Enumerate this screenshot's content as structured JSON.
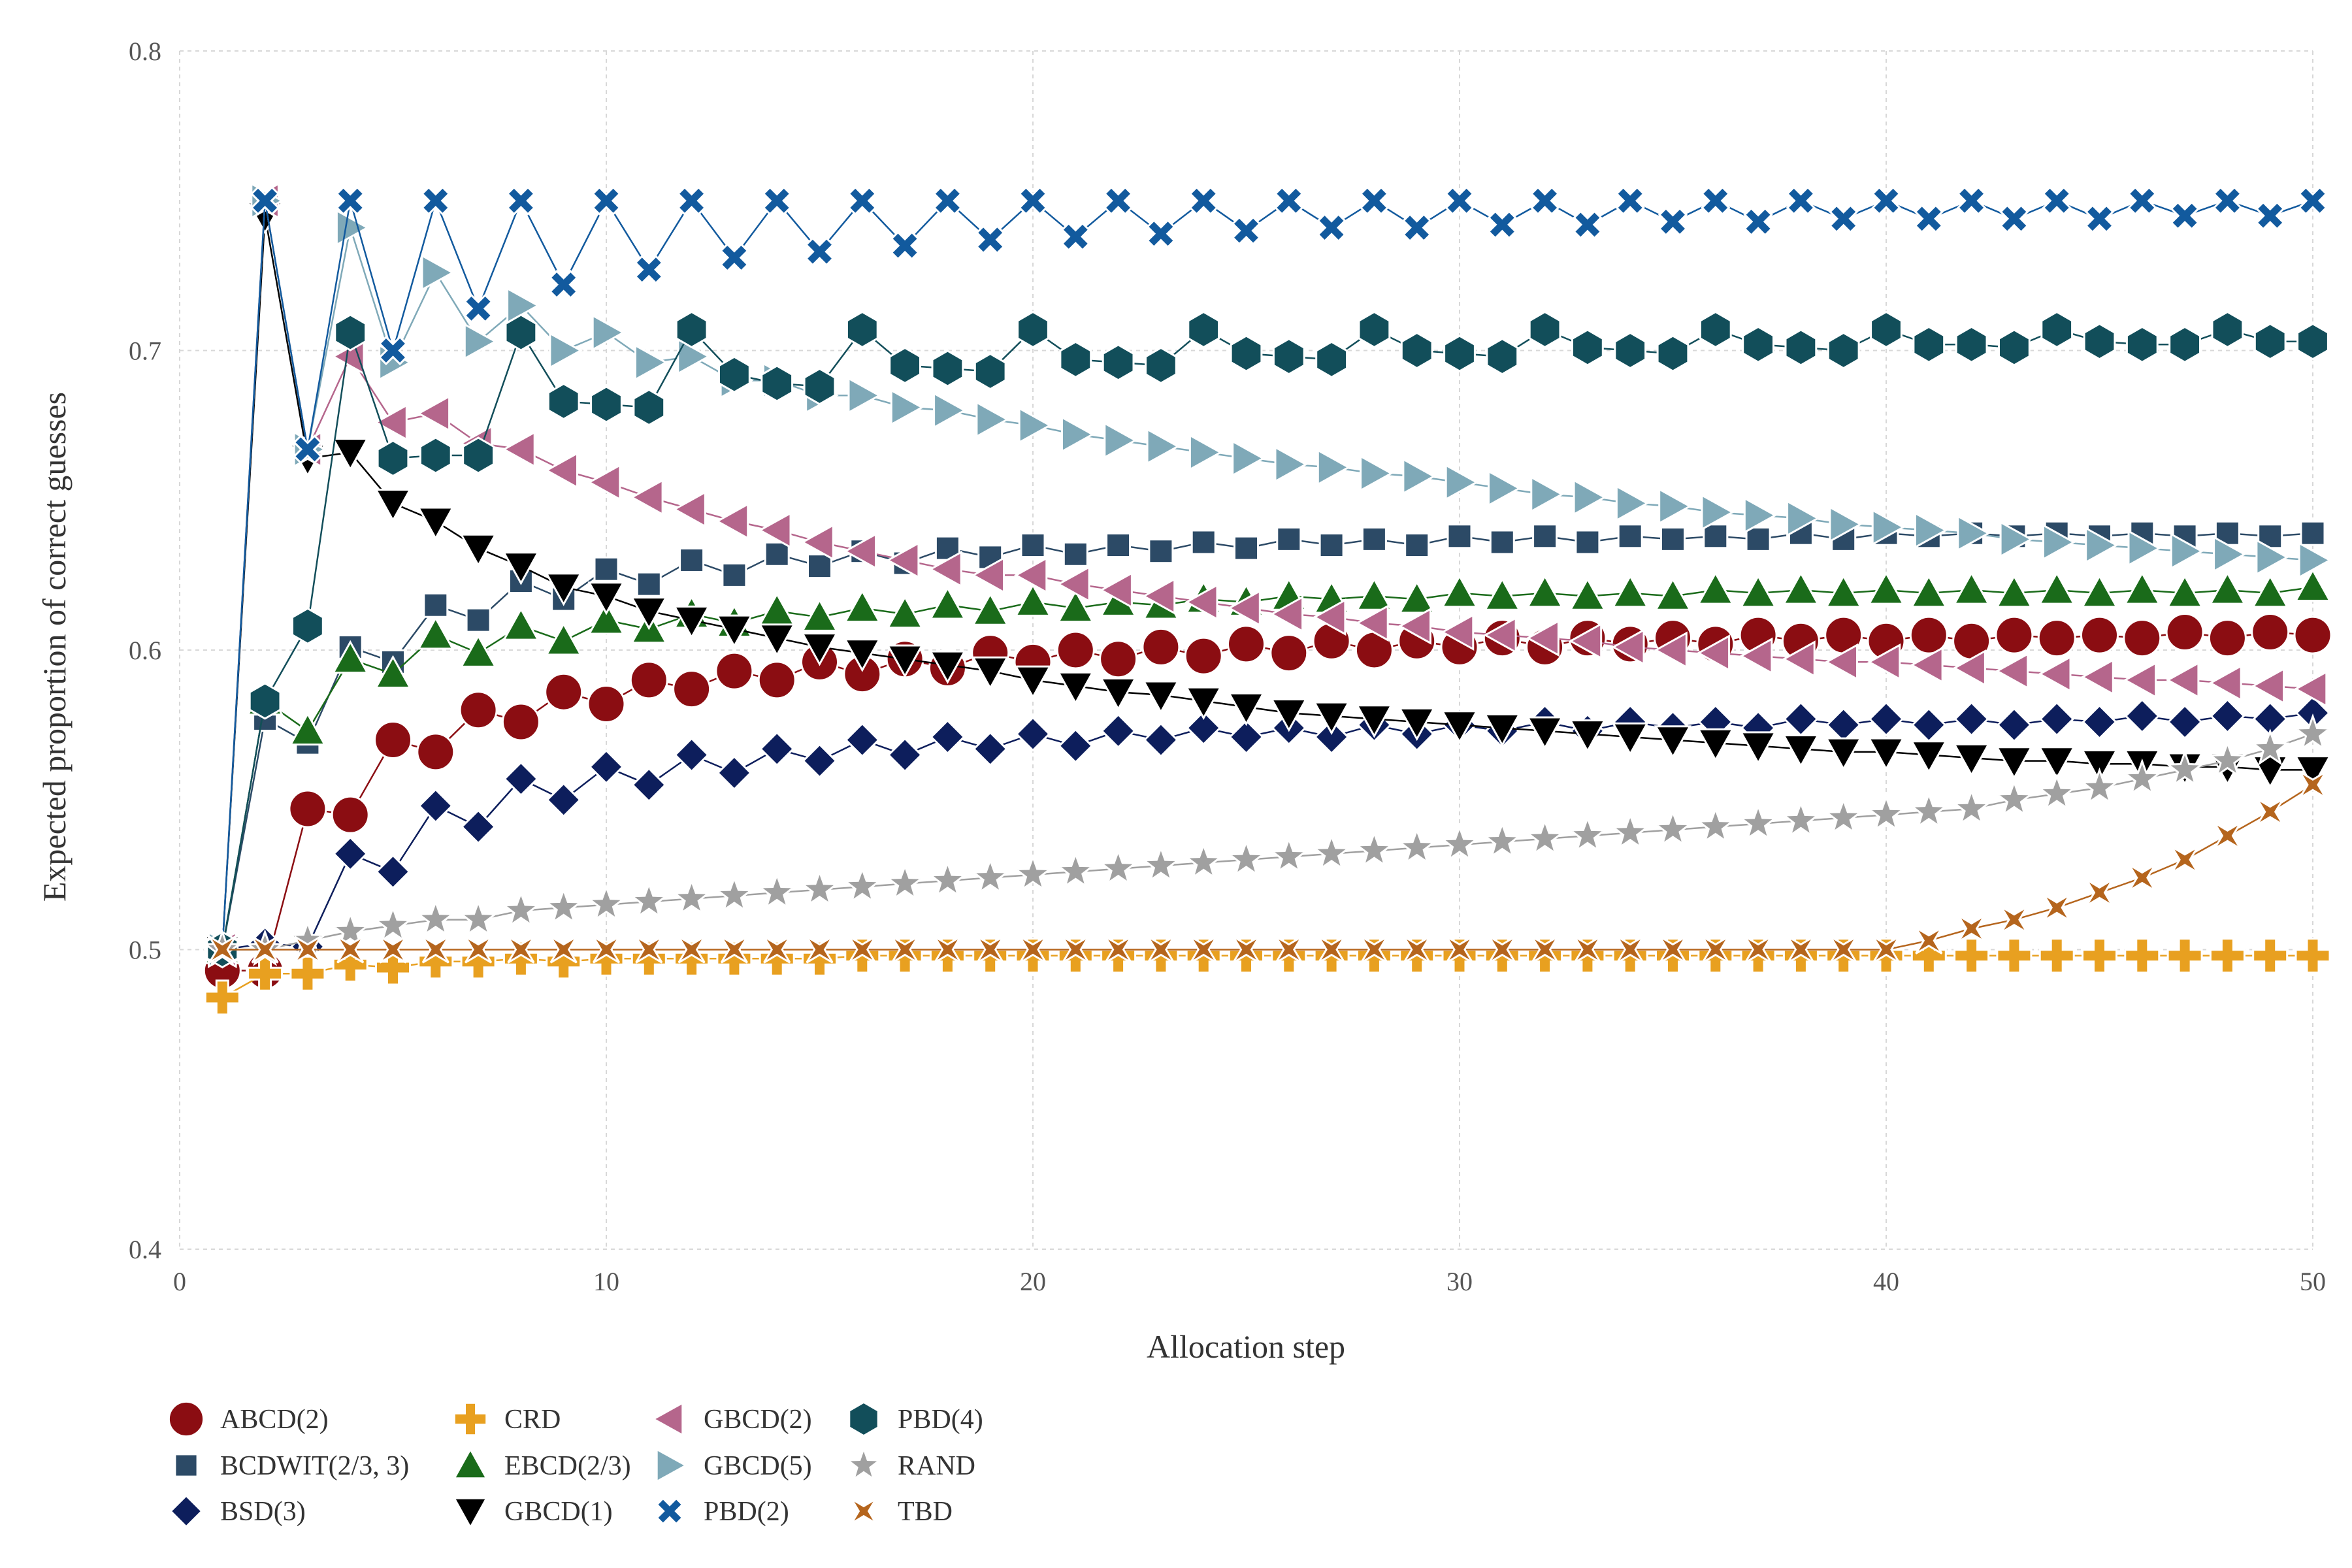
{
  "chart_data": {
    "type": "line",
    "title": "",
    "xlabel": "Allocation step",
    "ylabel": "Expected proportion of correct guesses",
    "xlim": [
      0,
      50
    ],
    "ylim": [
      0.4,
      0.8
    ],
    "xticks": [
      0,
      10,
      20,
      30,
      40,
      50
    ],
    "xtick_labels": [
      "0",
      "10",
      "20",
      "30",
      "40",
      "50"
    ],
    "yticks": [
      0.4,
      0.5,
      0.6,
      0.7,
      0.8
    ],
    "ytick_labels": [
      "0.4",
      "0.5",
      "0.6",
      "0.7",
      "0.8"
    ],
    "grid": true,
    "legend_position": "bottom-left",
    "x": [
      1,
      2,
      3,
      4,
      5,
      6,
      7,
      8,
      9,
      10,
      11,
      12,
      13,
      14,
      15,
      16,
      17,
      18,
      19,
      20,
      21,
      22,
      23,
      24,
      25,
      26,
      27,
      28,
      29,
      30,
      31,
      32,
      33,
      34,
      35,
      36,
      37,
      38,
      39,
      40,
      41,
      42,
      43,
      44,
      45,
      46,
      47,
      48,
      49,
      50
    ],
    "series": [
      {
        "name": "ABCD(2)",
        "marker": "circle",
        "color": "#8B0D12",
        "line_color": "#8B0D12",
        "values": [
          0.493,
          0.493,
          0.547,
          0.545,
          0.57,
          0.566,
          0.58,
          0.576,
          0.586,
          0.582,
          0.59,
          0.587,
          0.593,
          0.59,
          0.596,
          0.592,
          0.597,
          0.594,
          0.599,
          0.596,
          0.6,
          0.597,
          0.601,
          0.598,
          0.602,
          0.599,
          0.603,
          0.6,
          0.603,
          0.601,
          0.604,
          0.601,
          0.604,
          0.602,
          0.604,
          0.602,
          0.605,
          0.603,
          0.605,
          0.603,
          0.605,
          0.603,
          0.605,
          0.604,
          0.605,
          0.604,
          0.606,
          0.604,
          0.606,
          0.605
        ]
      },
      {
        "name": "BCDWIT(2/3, 3)",
        "marker": "square",
        "color": "#2C4A66",
        "line_color": "#2C4A66",
        "values": [
          0.5,
          0.577,
          0.569,
          0.601,
          0.596,
          0.615,
          0.61,
          0.623,
          0.617,
          0.627,
          0.622,
          0.63,
          0.625,
          0.632,
          0.628,
          0.633,
          0.629,
          0.634,
          0.631,
          0.635,
          0.632,
          0.635,
          0.633,
          0.636,
          0.634,
          0.637,
          0.635,
          0.637,
          0.635,
          0.638,
          0.636,
          0.638,
          0.636,
          0.638,
          0.637,
          0.638,
          0.637,
          0.639,
          0.637,
          0.639,
          0.638,
          0.639,
          0.638,
          0.639,
          0.638,
          0.639,
          0.638,
          0.639,
          0.638,
          0.639
        ]
      },
      {
        "name": "BSD(3)",
        "marker": "diamond",
        "color": "#0D1E5C",
        "line_color": "#0D1E5C",
        "values": [
          0.5,
          0.502,
          0.501,
          0.532,
          0.526,
          0.548,
          0.541,
          0.557,
          0.55,
          0.561,
          0.555,
          0.565,
          0.559,
          0.567,
          0.563,
          0.57,
          0.565,
          0.571,
          0.567,
          0.572,
          0.568,
          0.573,
          0.57,
          0.574,
          0.571,
          0.574,
          0.571,
          0.575,
          0.572,
          0.575,
          0.573,
          0.576,
          0.573,
          0.576,
          0.574,
          0.576,
          0.574,
          0.577,
          0.575,
          0.577,
          0.575,
          0.577,
          0.575,
          0.577,
          0.576,
          0.578,
          0.576,
          0.578,
          0.577,
          0.579
        ]
      },
      {
        "name": "CRD",
        "marker": "plus",
        "color": "#E8A020",
        "line_color": "#E8A020",
        "values": [
          0.484,
          0.492,
          0.492,
          0.495,
          0.494,
          0.496,
          0.496,
          0.497,
          0.496,
          0.497,
          0.497,
          0.497,
          0.497,
          0.497,
          0.497,
          0.498,
          0.498,
          0.498,
          0.498,
          0.498,
          0.498,
          0.498,
          0.498,
          0.498,
          0.498,
          0.498,
          0.498,
          0.498,
          0.498,
          0.498,
          0.498,
          0.498,
          0.498,
          0.498,
          0.498,
          0.498,
          0.498,
          0.498,
          0.498,
          0.498,
          0.498,
          0.498,
          0.498,
          0.498,
          0.498,
          0.498,
          0.498,
          0.498,
          0.498,
          0.498
        ]
      },
      {
        "name": "EBCD(2/3)",
        "marker": "triangle-up",
        "color": "#1A6B1A",
        "line_color": "#1A6B1A",
        "values": [
          0.5,
          0.583,
          0.573,
          0.597,
          0.592,
          0.605,
          0.599,
          0.608,
          0.603,
          0.61,
          0.607,
          0.612,
          0.609,
          0.613,
          0.611,
          0.614,
          0.612,
          0.615,
          0.613,
          0.616,
          0.614,
          0.616,
          0.615,
          0.617,
          0.616,
          0.618,
          0.617,
          0.618,
          0.617,
          0.619,
          0.618,
          0.619,
          0.618,
          0.619,
          0.618,
          0.62,
          0.619,
          0.62,
          0.619,
          0.62,
          0.619,
          0.62,
          0.619,
          0.62,
          0.619,
          0.62,
          0.619,
          0.62,
          0.619,
          0.621
        ]
      },
      {
        "name": "GBCD(1)",
        "marker": "triangle-down",
        "color": "#000000",
        "line_color": "#000000",
        "values": [
          0.5,
          0.745,
          0.664,
          0.666,
          0.649,
          0.643,
          0.634,
          0.628,
          0.621,
          0.618,
          0.613,
          0.61,
          0.607,
          0.604,
          0.601,
          0.599,
          0.597,
          0.595,
          0.593,
          0.59,
          0.588,
          0.586,
          0.585,
          0.583,
          0.581,
          0.579,
          0.578,
          0.577,
          0.576,
          0.575,
          0.574,
          0.573,
          0.572,
          0.571,
          0.57,
          0.569,
          0.568,
          0.567,
          0.566,
          0.566,
          0.565,
          0.564,
          0.563,
          0.563,
          0.562,
          0.562,
          0.561,
          0.561,
          0.56,
          0.56
        ]
      },
      {
        "name": "GBCD(2)",
        "marker": "triangle-left",
        "color": "#B5668C",
        "line_color": "#B5668C",
        "values": [
          0.5,
          0.75,
          0.667,
          0.698,
          0.676,
          0.679,
          0.669,
          0.667,
          0.66,
          0.656,
          0.651,
          0.647,
          0.643,
          0.64,
          0.636,
          0.633,
          0.63,
          0.627,
          0.625,
          0.625,
          0.622,
          0.62,
          0.618,
          0.616,
          0.614,
          0.612,
          0.611,
          0.609,
          0.608,
          0.606,
          0.605,
          0.604,
          0.603,
          0.601,
          0.6,
          0.599,
          0.598,
          0.597,
          0.596,
          0.596,
          0.595,
          0.594,
          0.593,
          0.592,
          0.591,
          0.59,
          0.59,
          0.589,
          0.588,
          0.587
        ]
      },
      {
        "name": "GBCD(5)",
        "marker": "triangle-right",
        "color": "#7FA9B8",
        "line_color": "#7FA9B8",
        "values": [
          0.5,
          0.75,
          0.667,
          0.741,
          0.696,
          0.726,
          0.703,
          0.715,
          0.7,
          0.706,
          0.696,
          0.698,
          0.69,
          0.69,
          0.685,
          0.685,
          0.681,
          0.68,
          0.677,
          0.675,
          0.672,
          0.67,
          0.668,
          0.666,
          0.664,
          0.662,
          0.661,
          0.659,
          0.658,
          0.656,
          0.654,
          0.652,
          0.651,
          0.649,
          0.648,
          0.646,
          0.645,
          0.644,
          0.642,
          0.641,
          0.64,
          0.639,
          0.637,
          0.636,
          0.635,
          0.634,
          0.633,
          0.632,
          0.631,
          0.63
        ]
      },
      {
        "name": "PBD(2)",
        "marker": "cross",
        "color": "#125A9E",
        "line_color": "#125A9E",
        "values": [
          0.5,
          0.75,
          0.667,
          0.75,
          0.7,
          0.75,
          0.714,
          0.75,
          0.722,
          0.75,
          0.727,
          0.75,
          0.731,
          0.75,
          0.733,
          0.75,
          0.735,
          0.75,
          0.737,
          0.75,
          0.738,
          0.75,
          0.739,
          0.75,
          0.74,
          0.75,
          0.741,
          0.75,
          0.741,
          0.75,
          0.742,
          0.75,
          0.742,
          0.75,
          0.743,
          0.75,
          0.743,
          0.75,
          0.744,
          0.75,
          0.744,
          0.75,
          0.744,
          0.75,
          0.744,
          0.75,
          0.745,
          0.75,
          0.745,
          0.75
        ]
      },
      {
        "name": "PBD(4)",
        "marker": "hexagon",
        "color": "#124E5A",
        "line_color": "#124E5A",
        "values": [
          0.5,
          0.583,
          0.608,
          0.706,
          0.664,
          0.665,
          0.665,
          0.706,
          0.683,
          0.682,
          0.681,
          0.707,
          0.692,
          0.689,
          0.688,
          0.707,
          0.695,
          0.694,
          0.693,
          0.707,
          0.697,
          0.696,
          0.695,
          0.707,
          0.699,
          0.698,
          0.697,
          0.707,
          0.7,
          0.699,
          0.698,
          0.707,
          0.701,
          0.7,
          0.699,
          0.707,
          0.702,
          0.701,
          0.7,
          0.707,
          0.702,
          0.702,
          0.701,
          0.707,
          0.703,
          0.702,
          0.702,
          0.707,
          0.703,
          0.703
        ]
      },
      {
        "name": "RAND",
        "marker": "star",
        "color": "#A0A0A0",
        "line_color": "#A0A0A0",
        "values": [
          0.5,
          0.5,
          0.503,
          0.506,
          0.508,
          0.51,
          0.51,
          0.513,
          0.514,
          0.515,
          0.516,
          0.517,
          0.518,
          0.519,
          0.52,
          0.521,
          0.522,
          0.523,
          0.524,
          0.525,
          0.526,
          0.527,
          0.528,
          0.529,
          0.53,
          0.531,
          0.532,
          0.533,
          0.534,
          0.535,
          0.536,
          0.537,
          0.538,
          0.539,
          0.54,
          0.541,
          0.542,
          0.543,
          0.544,
          0.545,
          0.546,
          0.547,
          0.55,
          0.552,
          0.554,
          0.557,
          0.56,
          0.563,
          0.567,
          0.572
        ]
      },
      {
        "name": "TBD",
        "marker": "star4",
        "color": "#B5651D",
        "line_color": "#B5651D",
        "values": [
          0.5,
          0.5,
          0.5,
          0.5,
          0.5,
          0.5,
          0.5,
          0.5,
          0.5,
          0.5,
          0.5,
          0.5,
          0.5,
          0.5,
          0.5,
          0.5,
          0.5,
          0.5,
          0.5,
          0.5,
          0.5,
          0.5,
          0.5,
          0.5,
          0.5,
          0.5,
          0.5,
          0.5,
          0.5,
          0.5,
          0.5,
          0.5,
          0.5,
          0.5,
          0.5,
          0.5,
          0.5,
          0.5,
          0.5,
          0.5,
          0.503,
          0.507,
          0.51,
          0.514,
          0.519,
          0.524,
          0.53,
          0.538,
          0.546,
          0.555
        ]
      }
    ]
  }
}
